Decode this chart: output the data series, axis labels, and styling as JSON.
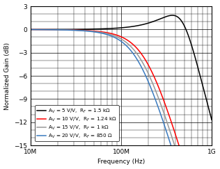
{
  "title": "",
  "xlabel": "Frequency (Hz)",
  "ylabel": "Normalized Gain (dB)",
  "xlim": [
    10000000.0,
    1000000000.0
  ],
  "ylim": [
    -15,
    3
  ],
  "yticks": [
    -15,
    -12,
    -9,
    -6,
    -3,
    0,
    3
  ],
  "series": [
    {
      "label": "A$_V$ = 5 V/V,  R$_F$ = 1.5 kΩ",
      "color": "#000000",
      "f3db": 480000000.0,
      "Q": 1.1
    },
    {
      "label": "A$_V$ = 10 V/V,  R$_F$ = 1.24 kΩ",
      "color": "#ff0000",
      "f3db": 190000000.0,
      "Q": 0.62
    },
    {
      "label": "A$_V$ = 15 V/V,  R$_F$ = 1 kΩ",
      "color": "#999999",
      "f3db": 170000000.0,
      "Q": 0.62
    },
    {
      "label": "A$_V$ = 20 V/V,  R$_F$ = 850 Ω",
      "color": "#3a7abf",
      "f3db": 155000000.0,
      "Q": 0.62
    }
  ],
  "background_color": "#ffffff",
  "fontsize": 6.5,
  "legend_fontsize": 5.2
}
